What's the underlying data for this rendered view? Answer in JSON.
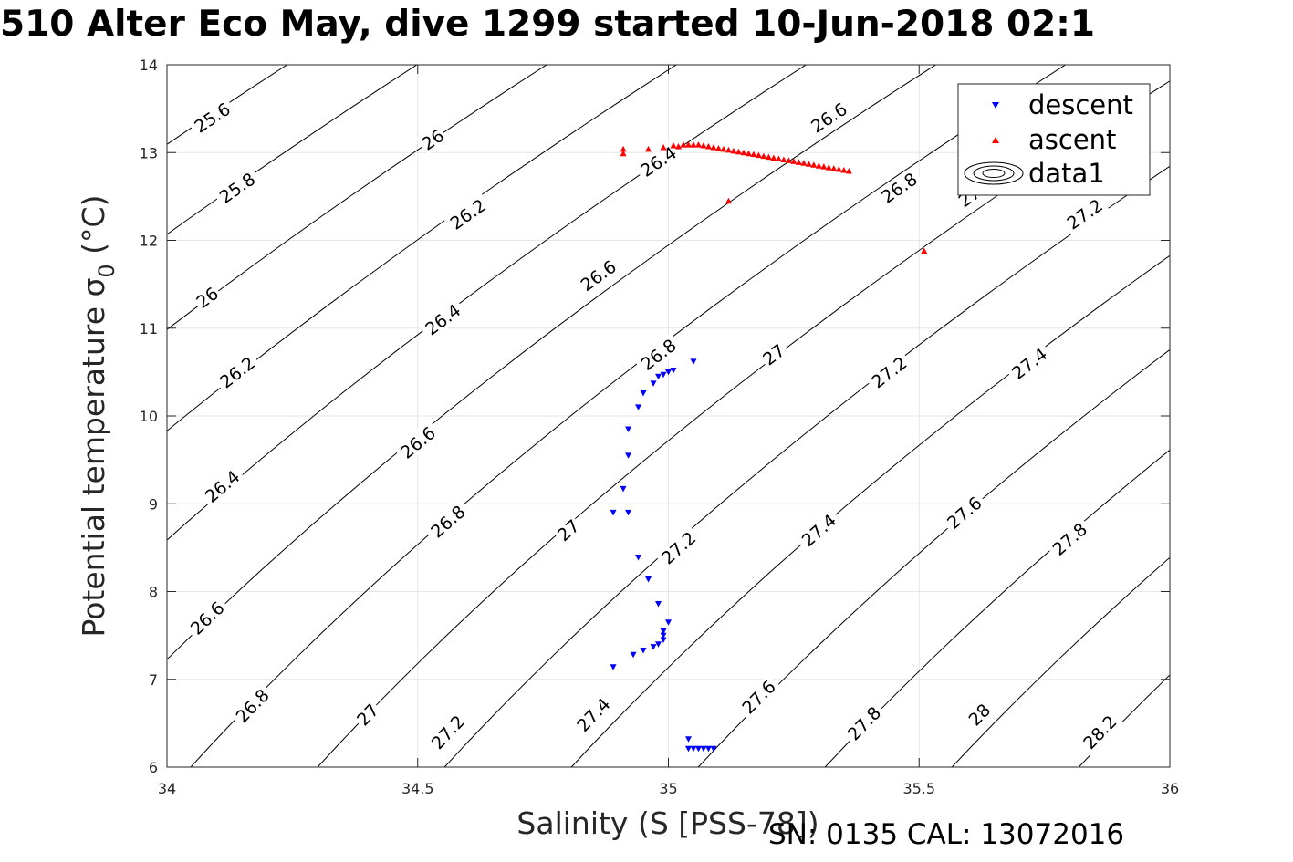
{
  "title": "510 Alter Eco May, dive 1299 started 10-Jun-2018 02:1",
  "footer": "SN: 0135  CAL: 13072016",
  "chart_data": {
    "type": "scatter",
    "xlabel": "Salinity (S [PSS-78])",
    "ylabel": "Potential temperature σ",
    "ylabel_subscript": "0",
    "ylabel_suffix": "(°C)",
    "xlim": [
      34,
      36
    ],
    "ylim": [
      6,
      14
    ],
    "xticks": [
      34,
      34.5,
      35,
      35.5,
      36
    ],
    "xtick_labels": [
      "34",
      "34.5",
      "35",
      "35.5",
      "36"
    ],
    "yticks": [
      6,
      7,
      8,
      9,
      10,
      11,
      12,
      13,
      14
    ],
    "ytick_labels": [
      "6",
      "7",
      "8",
      "9",
      "10",
      "11",
      "12",
      "13",
      "14"
    ],
    "grid": true,
    "legend": {
      "placement": "top-right",
      "entries": [
        "descent",
        "ascent",
        "data1"
      ]
    },
    "series": [
      {
        "name": "descent",
        "marker": "triangle-down",
        "color": "#0000ff",
        "x": [
          35.05,
          34.99,
          35.0,
          35.01,
          34.98,
          34.97,
          34.95,
          34.94,
          34.92,
          34.92,
          34.91,
          34.92,
          34.89,
          34.94,
          34.96,
          34.98,
          35.0,
          34.99,
          34.99,
          34.99,
          34.98,
          34.97,
          34.95,
          34.93,
          34.89,
          35.04,
          35.04,
          35.05,
          35.06,
          35.07,
          35.08,
          35.09
        ],
        "y": [
          10.62,
          10.47,
          10.5,
          10.52,
          10.45,
          10.37,
          10.26,
          10.1,
          9.85,
          9.55,
          9.17,
          8.9,
          8.9,
          8.39,
          8.14,
          7.86,
          7.65,
          7.55,
          7.5,
          7.45,
          7.4,
          7.37,
          7.33,
          7.28,
          7.14,
          6.32,
          6.21,
          6.21,
          6.21,
          6.21,
          6.21,
          6.21
        ]
      },
      {
        "name": "ascent",
        "marker": "triangle-up",
        "color": "#ff0000",
        "x": [
          34.91,
          34.91,
          34.96,
          34.99,
          35.01,
          35.02,
          35.03,
          35.04,
          35.05,
          35.06,
          35.07,
          35.08,
          35.09,
          35.1,
          35.11,
          35.12,
          35.13,
          35.14,
          35.15,
          35.16,
          35.17,
          35.18,
          35.19,
          35.2,
          35.21,
          35.22,
          35.23,
          35.24,
          35.25,
          35.26,
          35.27,
          35.28,
          35.29,
          35.3,
          35.31,
          35.32,
          35.33,
          35.34,
          35.35,
          35.36,
          35.12,
          35.51
        ],
        "y": [
          13.04,
          12.99,
          13.04,
          13.06,
          13.08,
          13.07,
          13.09,
          13.09,
          13.09,
          13.09,
          13.08,
          13.07,
          13.06,
          13.05,
          13.04,
          13.03,
          13.02,
          13.01,
          13.0,
          12.99,
          12.98,
          12.97,
          12.96,
          12.95,
          12.94,
          12.93,
          12.92,
          12.91,
          12.9,
          12.89,
          12.88,
          12.87,
          12.86,
          12.85,
          12.84,
          12.83,
          12.82,
          12.81,
          12.8,
          12.79,
          12.45,
          11.88
        ]
      }
    ],
    "contours": {
      "name": "data1",
      "levels": [
        25.6,
        25.8,
        26,
        26.2,
        26.4,
        26.6,
        26.8,
        27,
        27.2,
        27.4,
        27.6,
        27.8,
        28,
        28.2
      ],
      "level_labels": [
        "25.6",
        "25.8",
        "26",
        "26.2",
        "26.4",
        "26.6",
        "26.8",
        "27",
        "27.2",
        "27.4",
        "27.6",
        "27.8",
        "28",
        "28.2"
      ],
      "visible_labels": [
        {
          "level": 25.6,
          "text": "25.6",
          "s": 34.09,
          "t": 13.4
        },
        {
          "level": 25.8,
          "text": "25.8",
          "s": 34.14,
          "t": 12.6
        },
        {
          "level": 26,
          "text": "26",
          "s": 34.08,
          "t": 11.35
        },
        {
          "level": 26,
          "text": "26",
          "s": 34.53,
          "t": 13.15
        },
        {
          "level": 26.2,
          "text": "26.2",
          "s": 34.14,
          "t": 10.5
        },
        {
          "level": 26.2,
          "text": "26.2",
          "s": 34.6,
          "t": 12.3
        },
        {
          "level": 26.4,
          "text": "26.4",
          "s": 34.11,
          "t": 9.2
        },
        {
          "level": 26.4,
          "text": "26.4",
          "s": 34.55,
          "t": 11.1
        },
        {
          "level": 26.4,
          "text": "26.4",
          "s": 34.98,
          "t": 12.9
        },
        {
          "level": 26.6,
          "text": "26.6",
          "s": 34.08,
          "t": 7.7
        },
        {
          "level": 26.6,
          "text": "26.6",
          "s": 34.5,
          "t": 9.7
        },
        {
          "level": 26.6,
          "text": "26.6",
          "s": 34.86,
          "t": 11.6
        },
        {
          "level": 26.6,
          "text": "26.6",
          "s": 35.32,
          "t": 13.4
        },
        {
          "level": 26.8,
          "text": "26.8",
          "s": 34.17,
          "t": 6.7
        },
        {
          "level": 26.8,
          "text": "26.8",
          "s": 34.56,
          "t": 8.8
        },
        {
          "level": 26.8,
          "text": "26.8",
          "s": 34.98,
          "t": 10.7
        },
        {
          "level": 26.8,
          "text": "26.8",
          "s": 35.46,
          "t": 12.6
        },
        {
          "level": 27,
          "text": "27",
          "s": 34.4,
          "t": 6.6
        },
        {
          "level": 27,
          "text": "27",
          "s": 34.8,
          "t": 8.7
        },
        {
          "level": 27,
          "text": "27",
          "s": 35.21,
          "t": 10.7
        },
        {
          "level": 27,
          "text": "27",
          "s": 35.6,
          "t": 12.5
        },
        {
          "level": 27.2,
          "text": "27.2",
          "s": 34.56,
          "t": 6.4
        },
        {
          "level": 27.2,
          "text": "27.2",
          "s": 35.02,
          "t": 8.5
        },
        {
          "level": 27.2,
          "text": "27.2",
          "s": 35.44,
          "t": 10.5
        },
        {
          "level": 27.2,
          "text": "27.2",
          "s": 35.83,
          "t": 12.3
        },
        {
          "level": 27.4,
          "text": "27.4",
          "s": 34.85,
          "t": 6.6
        },
        {
          "level": 27.4,
          "text": "27.4",
          "s": 35.3,
          "t": 8.7
        },
        {
          "level": 27.4,
          "text": "27.4",
          "s": 35.72,
          "t": 10.6
        },
        {
          "level": 27.6,
          "text": "27.6",
          "s": 35.18,
          "t": 6.8
        },
        {
          "level": 27.6,
          "text": "27.6",
          "s": 35.59,
          "t": 8.9
        },
        {
          "level": 27.8,
          "text": "27.8",
          "s": 35.39,
          "t": 6.5
        },
        {
          "level": 27.8,
          "text": "27.8",
          "s": 35.8,
          "t": 8.6
        },
        {
          "level": 28,
          "text": "28",
          "s": 35.62,
          "t": 6.6
        },
        {
          "level": 28.2,
          "text": "28.2",
          "s": 35.86,
          "t": 6.4
        }
      ]
    }
  },
  "colors": {
    "descent": "#0000ff",
    "ascent": "#ff0000",
    "grid": "#e6e6e6",
    "axis": "#262626"
  }
}
